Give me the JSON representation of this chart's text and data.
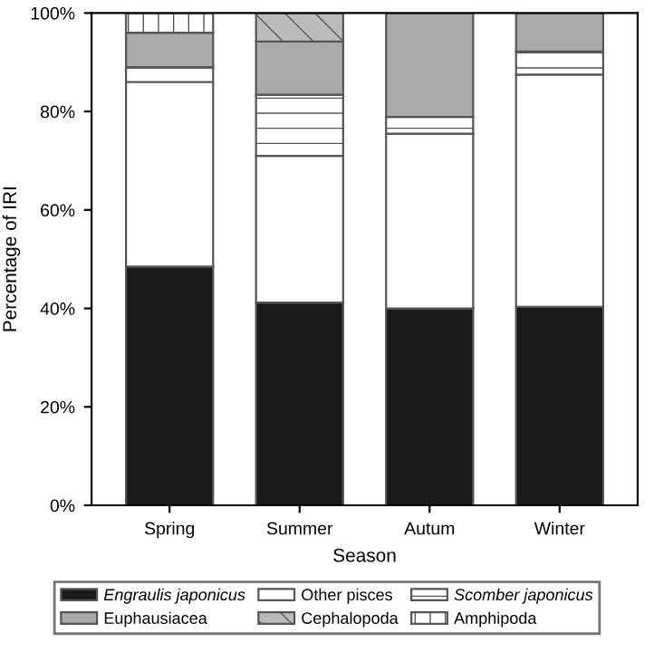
{
  "chart_data": {
    "type": "bar",
    "stacked": true,
    "xlabel": "Season",
    "ylabel": "Percentage of IRI",
    "categories": [
      "Spring",
      "Summer",
      "Autum",
      "Winter"
    ],
    "series": [
      {
        "name": "Engraulis japonicus",
        "color": "#1a1a1a",
        "values": [
          48.5,
          41.2,
          40.0,
          40.3
        ]
      },
      {
        "name": "Other pisces",
        "color": "#ffffff",
        "values": [
          37.5,
          29.8,
          35.5,
          47.2
        ]
      },
      {
        "name": "Scomber japonicus",
        "color": "#ffffff",
        "values": [
          3.0,
          12.4,
          3.4,
          4.7
        ]
      },
      {
        "name": "Euphausiacea",
        "color": "#aaaaaa",
        "values": [
          7.0,
          10.8,
          21.1,
          7.8
        ]
      },
      {
        "name": "Cephalopoda",
        "color": "#bbbbbb",
        "values": [
          null,
          5.8,
          null,
          null
        ]
      },
      {
        "name": "Amphipoda",
        "color": "#ffffff",
        "values": [
          4.0,
          null,
          null,
          null
        ]
      }
    ],
    "ylim": [
      0,
      100
    ],
    "yticks": [
      {
        "value": 0,
        "label": "0%"
      },
      {
        "value": 20,
        "label": "20%"
      },
      {
        "value": 40,
        "label": "40%"
      },
      {
        "value": 60,
        "label": "60%"
      },
      {
        "value": 80,
        "label": "80%"
      },
      {
        "value": 100,
        "label": "100%"
      }
    ],
    "grid": false,
    "legend": "bottom"
  }
}
